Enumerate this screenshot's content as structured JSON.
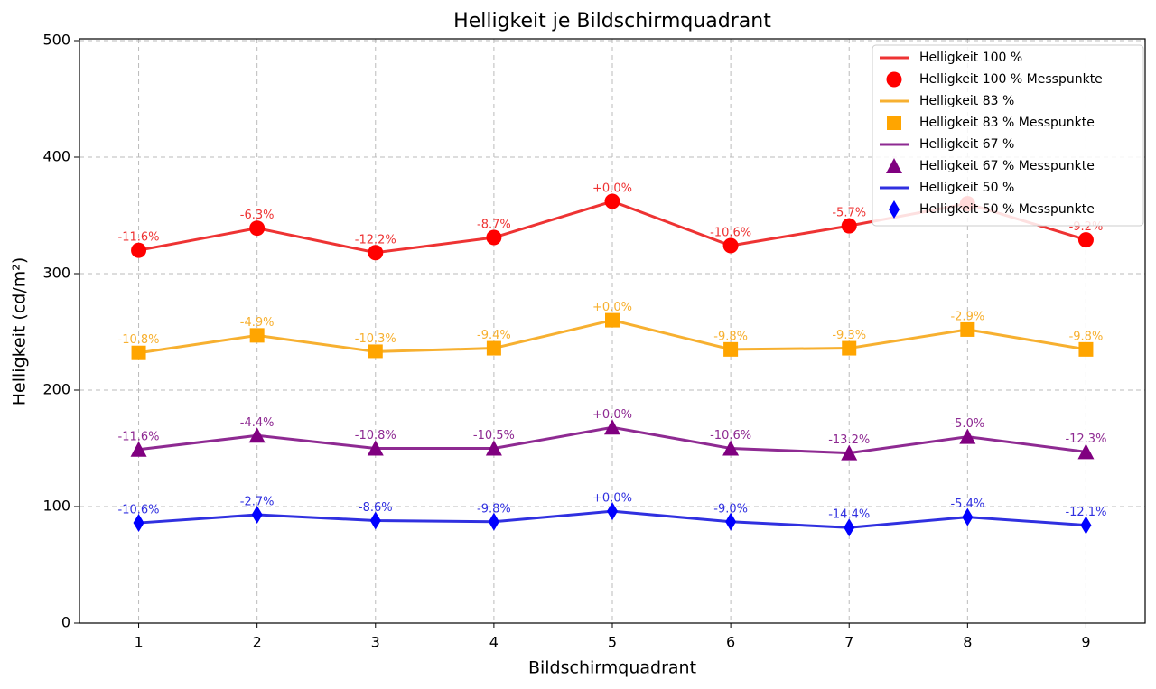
{
  "chart_data": {
    "type": "line",
    "title": "Helligkeit je Bildschirmquadrant",
    "xlabel": "Bildschirmquadrant",
    "ylabel": "Helligkeit (cd/m²)",
    "x": [
      1,
      2,
      3,
      4,
      5,
      6,
      7,
      8,
      9
    ],
    "xlim": [
      0.5,
      9.5
    ],
    "xticks": [
      1,
      2,
      3,
      4,
      5,
      6,
      7,
      8,
      9
    ],
    "ylim": [
      0,
      500
    ],
    "yticks": [
      0,
      100,
      200,
      300,
      400,
      500
    ],
    "grid": true,
    "legend": "upper right",
    "series": [
      {
        "name": "Helligkeit 100 %",
        "marker_name": "Helligkeit 100 % Messpunkte",
        "color": "#ee3333",
        "marker_color": "#ff0000",
        "marker": "circle",
        "values": [
          320,
          339,
          318,
          331,
          362,
          324,
          341,
          360,
          329
        ],
        "labels": [
          "-11.6%",
          "-6.3%",
          "-12.2%",
          "-8.7%",
          "+0.0%",
          "-10.6%",
          "-5.7%",
          null,
          "-9.2%"
        ]
      },
      {
        "name": "Helligkeit 83 %",
        "marker_name": "Helligkeit 83 % Messpunkte",
        "color": "#f7b030",
        "marker_color": "#ffa500",
        "marker": "square",
        "values": [
          232,
          247,
          233,
          236,
          260,
          235,
          236,
          252,
          235
        ],
        "labels": [
          "-10.8%",
          "-4.9%",
          "-10.3%",
          "-9.4%",
          "+0.0%",
          "-9.8%",
          "-9.3%",
          "-2.9%",
          "-9.8%"
        ]
      },
      {
        "name": "Helligkeit 67 %",
        "marker_name": "Helligkeit 67 % Messpunkte",
        "color": "#8e2a92",
        "marker_color": "#800080",
        "marker": "triangle",
        "values": [
          149,
          161,
          150,
          150,
          168,
          150,
          146,
          160,
          147
        ],
        "labels": [
          "-11.6%",
          "-4.4%",
          "-10.8%",
          "-10.5%",
          "+0.0%",
          "-10.6%",
          "-13.2%",
          "-5.0%",
          "-12.3%"
        ]
      },
      {
        "name": "Helligkeit 50 %",
        "marker_name": "Helligkeit 50 % Messpunkte",
        "color": "#3030e0",
        "marker_color": "#0000ff",
        "marker": "diamond",
        "values": [
          86,
          93,
          88,
          87,
          96,
          87,
          82,
          91,
          84
        ],
        "labels": [
          "-10.6%",
          "-2.7%",
          "-8.6%",
          "-9.8%",
          "+0.0%",
          "-9.0%",
          "-14.4%",
          "-5.4%",
          "-12.1%"
        ]
      }
    ]
  }
}
